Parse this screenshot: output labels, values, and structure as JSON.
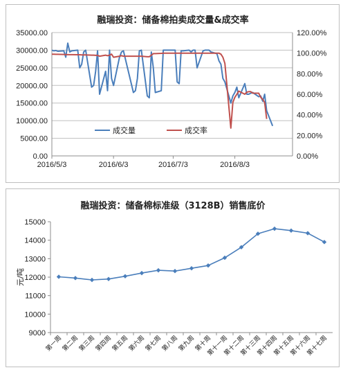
{
  "colors": {
    "volume": "#4a7ebb",
    "rate": "#c0504d",
    "series2": "#4a7ebb",
    "grid": "#bfbfbf",
    "axis": "#8c8c8c"
  },
  "chart_data": [
    {
      "type": "line",
      "title": "融瑞投资：储备棉拍卖成交量&成交率",
      "x_tick_labels": [
        "2016/5/3",
        "2016/6/3",
        "2016/7/3",
        "2016/8/3"
      ],
      "x_range": [
        "2016/5/3",
        "2016/9/1"
      ],
      "y_left": {
        "ticks": [
          "0.00",
          "5000.00",
          "10000.00",
          "15000.00",
          "20000.00",
          "25000.00",
          "30000.00",
          "35000.00"
        ],
        "ylim": [
          0,
          35000
        ]
      },
      "y_right": {
        "ticks": [
          "0.00%",
          "20.00%",
          "40.00%",
          "60.00%",
          "80.00%",
          "100.00%",
          "120.00%"
        ],
        "ylim": [
          0,
          120
        ]
      },
      "legend_position": "lower-middle",
      "grid": "horizontal",
      "series": [
        {
          "name": "成交量",
          "axis": "left",
          "x": [
            "2016/5/3",
            "2016/5/4",
            "2016/5/5",
            "2016/5/6",
            "2016/5/9",
            "2016/5/10",
            "2016/5/11",
            "2016/5/12",
            "2016/5/13",
            "2016/5/16",
            "2016/5/17",
            "2016/5/18",
            "2016/5/19",
            "2016/5/20",
            "2016/5/23",
            "2016/5/24",
            "2016/5/25",
            "2016/5/26",
            "2016/5/27",
            "2016/5/30",
            "2016/5/31",
            "2016/6/1",
            "2016/6/2",
            "2016/6/3",
            "2016/6/6",
            "2016/6/7",
            "2016/6/8",
            "2016/6/13",
            "2016/6/14",
            "2016/6/15",
            "2016/6/16",
            "2016/6/17",
            "2016/6/20",
            "2016/6/21",
            "2016/6/22",
            "2016/6/23",
            "2016/6/24",
            "2016/6/27",
            "2016/6/28",
            "2016/6/29",
            "2016/6/30",
            "2016/7/1",
            "2016/7/4",
            "2016/7/5",
            "2016/7/6",
            "2016/7/7",
            "2016/7/8",
            "2016/7/11",
            "2016/7/12",
            "2016/7/13",
            "2016/7/14",
            "2016/7/15",
            "2016/7/18",
            "2016/7/19",
            "2016/7/20",
            "2016/7/21",
            "2016/7/22",
            "2016/7/25",
            "2016/7/26",
            "2016/7/27",
            "2016/7/28",
            "2016/7/29",
            "2016/8/1",
            "2016/8/2",
            "2016/8/3",
            "2016/8/4",
            "2016/8/5",
            "2016/8/8",
            "2016/8/9",
            "2016/8/10",
            "2016/8/11",
            "2016/8/12",
            "2016/8/15",
            "2016/8/16",
            "2016/8/17",
            "2016/8/18",
            "2016/8/19",
            "2016/8/22",
            "2016/8/23",
            "2016/8/24",
            "2016/8/25",
            "2016/8/26"
          ],
          "values": [
            30000,
            29800,
            29900,
            29700,
            29800,
            28000,
            32000,
            29500,
            29800,
            30000,
            25000,
            26000,
            29500,
            30000,
            19500,
            20000,
            24000,
            29800,
            17500,
            24000,
            18500,
            30000,
            22000,
            20000,
            28000,
            29500,
            29800,
            18000,
            18500,
            22000,
            29800,
            30000,
            17000,
            16500,
            29500,
            25000,
            18000,
            18500,
            30000,
            30000,
            30000,
            30000,
            30000,
            21000,
            20500,
            29800,
            29800,
            30000,
            29500,
            30000,
            30000,
            25000,
            29800,
            30000,
            30000,
            30000,
            29500,
            29000,
            27000,
            26000,
            22000,
            21000,
            15000,
            17000,
            18000,
            19500,
            16500,
            20500,
            17500,
            17500,
            17800,
            18000,
            16800,
            17000,
            15500,
            17500,
            12800,
            8500,
            null,
            null,
            null,
            null
          ]
        },
        {
          "name": "成交率",
          "axis": "right",
          "x": [
            "2016/5/3",
            "2016/5/4",
            "2016/5/5",
            "2016/5/6",
            "2016/5/9",
            "2016/5/10",
            "2016/5/11",
            "2016/5/12",
            "2016/5/13",
            "2016/5/16",
            "2016/5/17",
            "2016/5/18",
            "2016/5/19",
            "2016/5/20",
            "2016/5/23",
            "2016/5/24",
            "2016/5/25",
            "2016/5/26",
            "2016/5/27",
            "2016/5/30",
            "2016/5/31",
            "2016/6/1",
            "2016/6/2",
            "2016/6/3",
            "2016/6/6",
            "2016/6/7",
            "2016/6/8",
            "2016/6/13",
            "2016/6/14",
            "2016/6/15",
            "2016/6/16",
            "2016/6/17",
            "2016/6/20",
            "2016/6/21",
            "2016/6/22",
            "2016/6/23",
            "2016/6/24",
            "2016/6/27",
            "2016/6/28",
            "2016/6/29",
            "2016/6/30",
            "2016/7/1",
            "2016/7/4",
            "2016/7/5",
            "2016/7/6",
            "2016/7/7",
            "2016/7/8",
            "2016/7/11",
            "2016/7/12",
            "2016/7/13",
            "2016/7/14",
            "2016/7/15",
            "2016/7/18",
            "2016/7/19",
            "2016/7/20",
            "2016/7/21",
            "2016/7/22",
            "2016/7/25",
            "2016/7/26",
            "2016/7/27",
            "2016/7/28",
            "2016/7/29",
            "2016/8/1",
            "2016/8/2",
            "2016/8/3",
            "2016/8/4",
            "2016/8/5",
            "2016/8/8",
            "2016/8/9",
            "2016/8/10",
            "2016/8/11",
            "2016/8/12",
            "2016/8/15",
            "2016/8/16",
            "2016/8/17",
            "2016/8/18",
            "2016/8/19",
            "2016/8/22",
            "2016/8/23",
            "2016/8/24",
            "2016/8/25",
            "2016/8/26"
          ],
          "values": [
            99,
            99,
            98.8,
            98.8,
            98.7,
            98.6,
            98.5,
            98.5,
            98.5,
            98.4,
            98.4,
            98.3,
            98.3,
            98.2,
            98,
            98,
            97.8,
            97.8,
            97,
            98,
            97.5,
            98,
            99,
            96,
            97,
            97.5,
            97,
            97,
            97,
            97,
            97,
            97,
            96.5,
            96.5,
            98,
            99.5,
            99.5,
            99.8,
            100,
            100,
            100,
            100,
            100,
            100,
            100,
            100,
            100,
            100,
            100,
            100,
            100,
            100,
            100,
            100,
            100,
            100,
            100,
            100,
            100,
            99,
            96,
            90,
            27,
            52,
            57,
            60,
            63,
            60,
            62,
            62.5,
            62.5,
            61,
            61,
            57,
            55,
            52,
            36,
            null,
            null,
            null,
            null,
            null
          ]
        }
      ]
    },
    {
      "type": "line",
      "title": "融瑞投资：储备棉标准级（3128B）销售底价",
      "ylabel": "元/吨",
      "categories": [
        "第一周",
        "第二周",
        "第三周",
        "第四周",
        "第五周",
        "第六周",
        "第七周",
        "第八周",
        "第九周",
        "第十周",
        "第十一周",
        "第十二周",
        "第十三周",
        "第十四周",
        "第十五周",
        "第十六周",
        "第十七周"
      ],
      "series": [
        {
          "values": [
            12020,
            11950,
            11850,
            11900,
            12050,
            12220,
            12370,
            12330,
            12480,
            12630,
            13050,
            13620,
            14350,
            14620,
            14520,
            14380,
            13900
          ]
        }
      ],
      "y_ticks": [
        "9000",
        "10000",
        "11000",
        "12000",
        "13000",
        "14000",
        "15000"
      ],
      "ylim": [
        9000,
        15000
      ],
      "grid": "none"
    }
  ]
}
